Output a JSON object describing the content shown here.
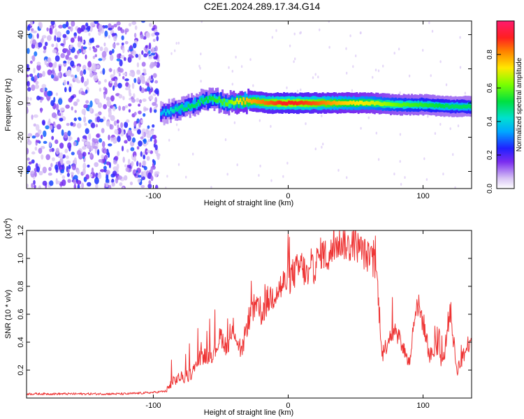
{
  "title": "C2E1.2024.289.17.34.G14",
  "chart_data": [
    {
      "type": "heatmap",
      "xlabel": "Height of straight line (km)",
      "ylabel": "Frequency (Hz)",
      "xlim": [
        -194,
        136
      ],
      "ylim": [
        -50,
        48
      ],
      "xticks": [
        -100,
        0,
        100
      ],
      "yticks": [
        -40,
        -20,
        0,
        20,
        40
      ],
      "colorbar": {
        "label": "Normalized spectral amplitude",
        "ticks": [
          0.0,
          0.2,
          0.4,
          0.6,
          0.8
        ],
        "range": [
          0,
          1
        ],
        "colormap": "white-purple-blue-cyan-green-yellow-red-magenta"
      },
      "ridge": {
        "description": "narrow band of high amplitude near 0 Hz from about -100 km to the end",
        "x": [
          -95,
          -85,
          -75,
          -65,
          -55,
          -45,
          -35,
          -25,
          -15,
          -5,
          5,
          20,
          40,
          60,
          80,
          100,
          120,
          136
        ],
        "y": [
          -6,
          -4,
          -2,
          1,
          2,
          0,
          1,
          1,
          0,
          0,
          0,
          0,
          0,
          0,
          -1,
          -1,
          -2,
          -2
        ],
        "amplitude": [
          0.35,
          0.45,
          0.5,
          0.5,
          0.55,
          0.6,
          0.75,
          0.8,
          0.85,
          0.9,
          0.9,
          0.85,
          0.75,
          0.7,
          0.6,
          0.55,
          0.5,
          0.5
        ]
      },
      "noise_region": {
        "x": [
          -194,
          -96
        ],
        "amplitude_range": [
          0.05,
          0.3
        ]
      }
    },
    {
      "type": "line",
      "xlabel": "Height of straight line (km)",
      "ylabel": "SNR (10 * v/v)",
      "yscale_label": "(x10",
      "yscale_exp": "4",
      "xlim": [
        -194,
        136
      ],
      "ylim": [
        0,
        1.2
      ],
      "xticks": [
        -100,
        0,
        100
      ],
      "yticks": [
        0.2,
        0.4,
        0.6,
        0.8,
        1.0,
        1.2
      ],
      "color": "#ee3333",
      "series": [
        {
          "x": [
            -194,
            -180,
            -160,
            -140,
            -120,
            -100,
            -90,
            -85,
            -80,
            -75,
            -70,
            -65,
            -60,
            -55,
            -50,
            -45,
            -40,
            -35,
            -30,
            -25,
            -20,
            -15,
            -10,
            -5,
            0,
            5,
            10,
            15,
            20,
            25,
            30,
            35,
            40,
            45,
            50,
            55,
            60,
            65,
            70,
            75,
            80,
            85,
            90,
            95,
            100,
            105,
            110,
            115,
            120,
            125,
            130,
            136
          ],
          "y": [
            0.03,
            0.03,
            0.03,
            0.03,
            0.03,
            0.04,
            0.05,
            0.12,
            0.15,
            0.14,
            0.2,
            0.3,
            0.3,
            0.32,
            0.45,
            0.35,
            0.5,
            0.3,
            0.55,
            0.65,
            0.6,
            0.7,
            0.75,
            0.8,
            0.85,
            0.9,
            0.95,
            0.85,
            0.95,
            1.05,
            1.0,
            1.1,
            1.12,
            1.08,
            1.1,
            1.05,
            1.0,
            0.95,
            0.3,
            0.45,
            0.5,
            0.35,
            0.25,
            0.7,
            0.55,
            0.3,
            0.35,
            0.25,
            0.65,
            0.2,
            0.3,
            0.45
          ]
        }
      ]
    }
  ]
}
